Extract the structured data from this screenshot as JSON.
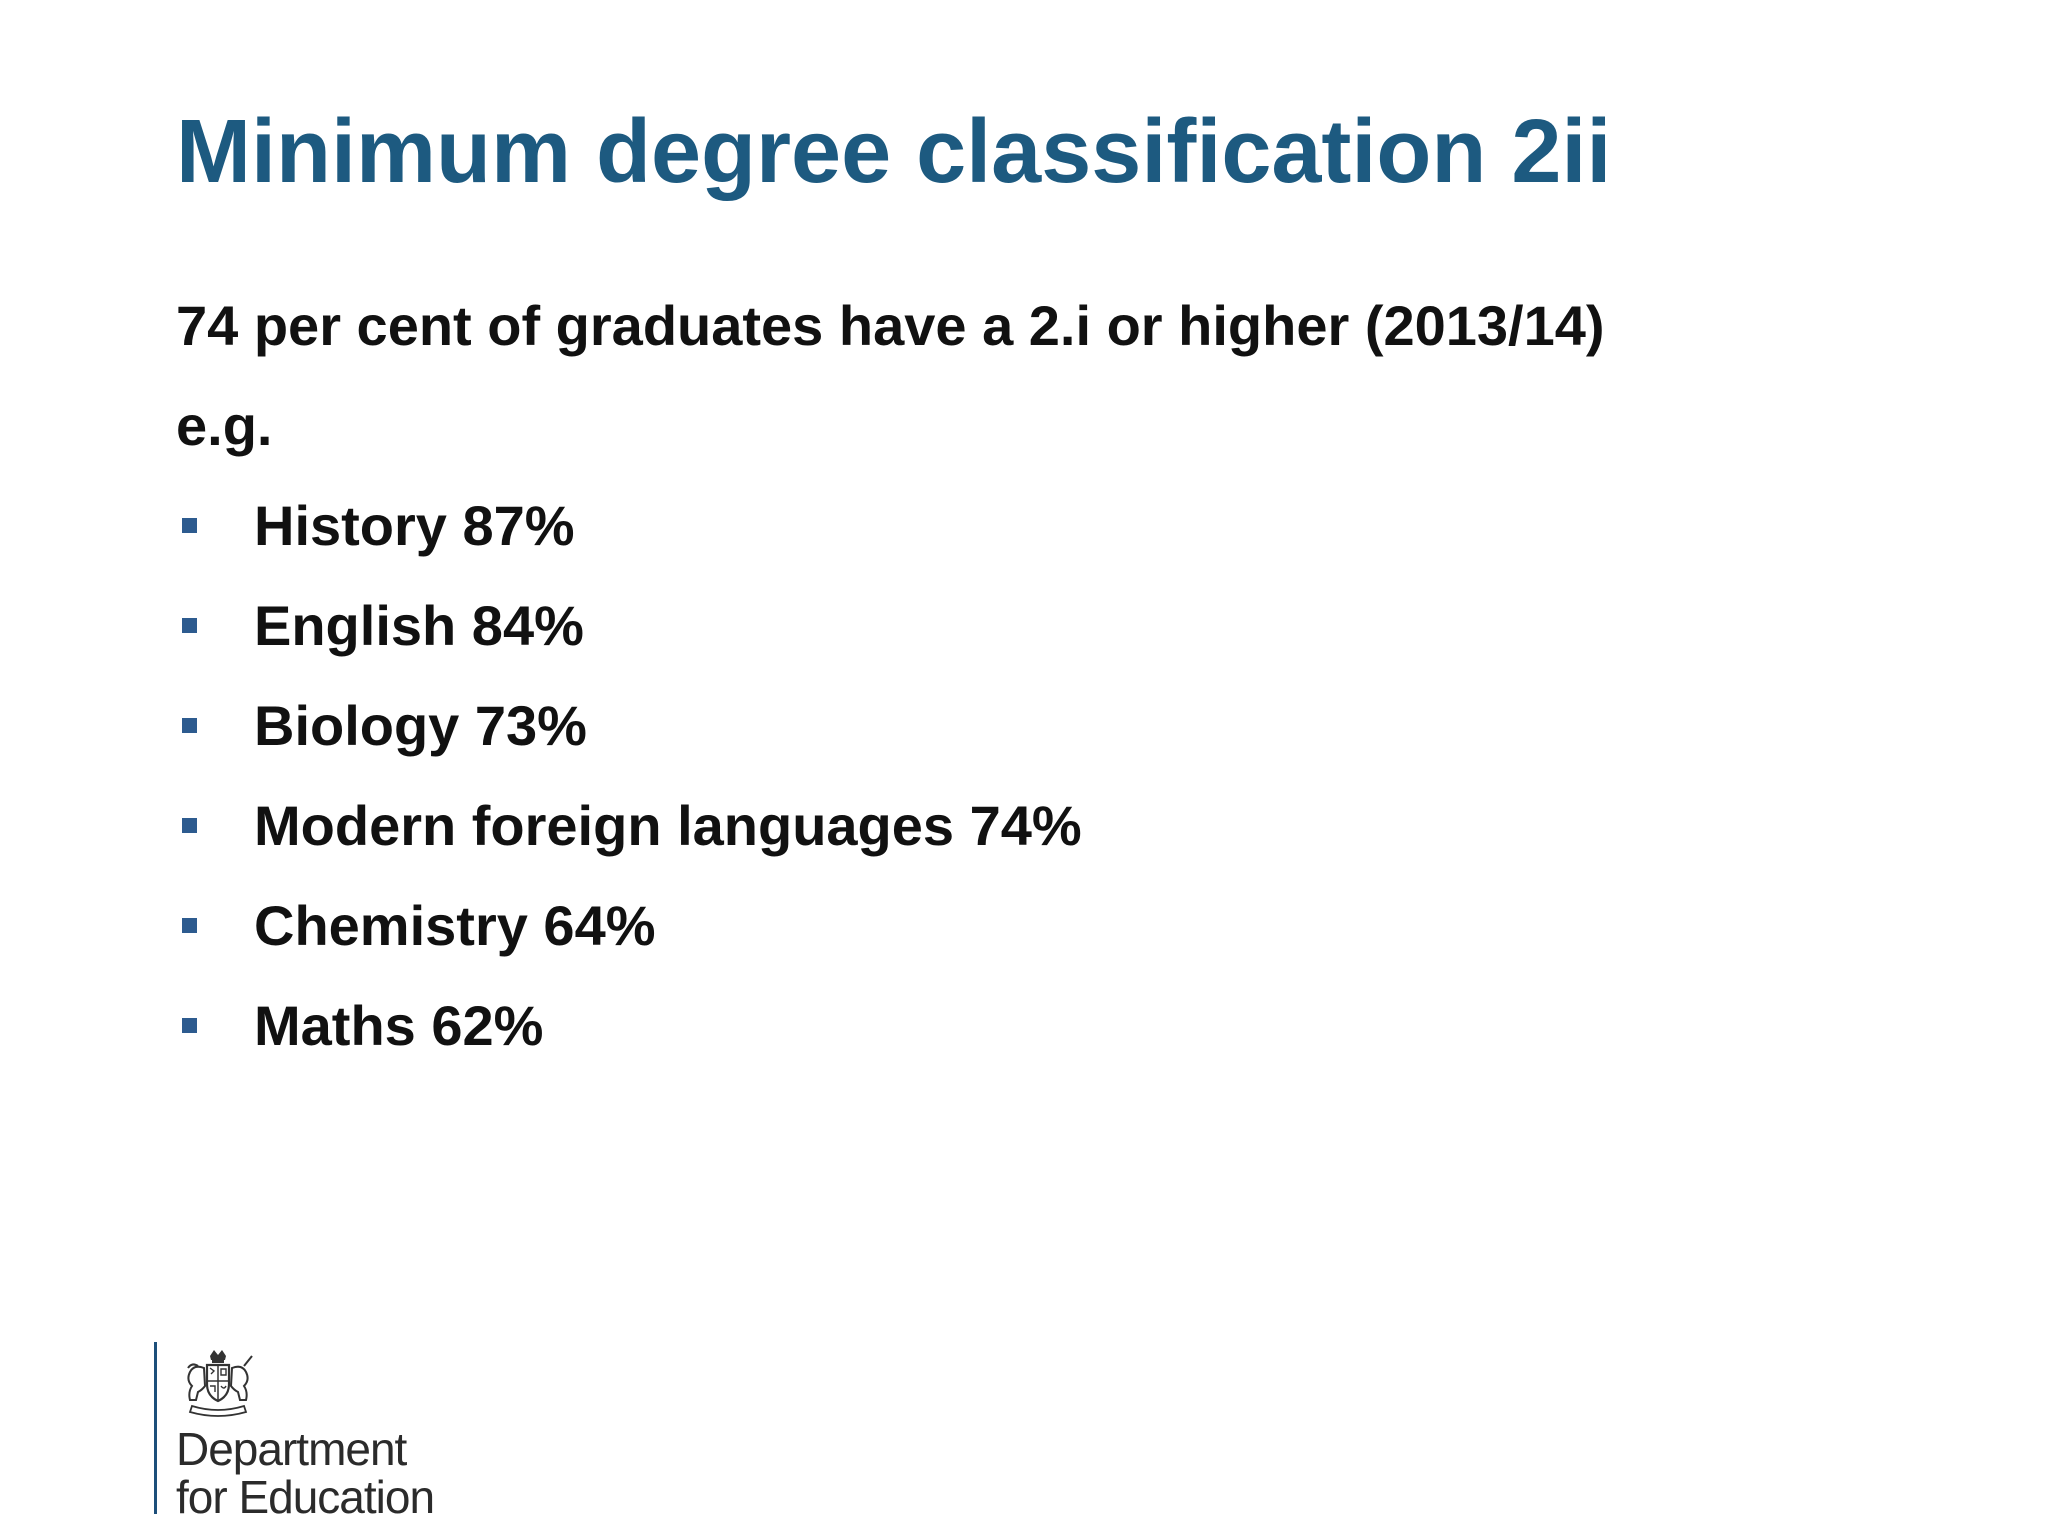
{
  "slide": {
    "title": "Minimum degree classification 2ii",
    "subtitle": "74 per cent of graduates have a 2.i or higher (2013/14)",
    "eg": "e.g.",
    "bullets": [
      "History 87%",
      "English 84%",
      "Biology 73%",
      "Modern foreign languages 74%",
      "Chemistry 64%",
      "Maths 62%"
    ]
  },
  "logo": {
    "line1": "Department",
    "line2": "for Education",
    "icon": "royal-coat-of-arms-icon"
  },
  "colors": {
    "title": "#1d5a80",
    "bullet": "#2d5b8f",
    "text": "#111111"
  }
}
